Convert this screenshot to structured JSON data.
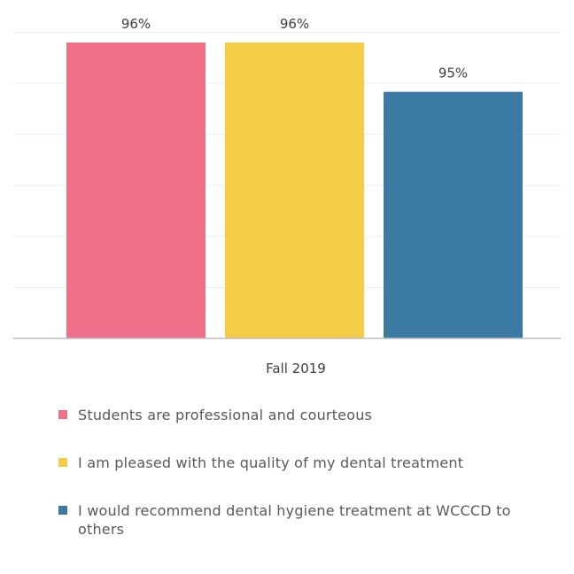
{
  "chart_data": {
    "type": "bar",
    "categories": [
      "Fall 2019"
    ],
    "series": [
      {
        "name": "Students are professional and courteous",
        "values": [
          96
        ],
        "label": "96%",
        "color": "#f07089"
      },
      {
        "name": "I am pleased with the quality of my dental treatment",
        "values": [
          96
        ],
        "label": "96%",
        "color": "#f5cc45"
      },
      {
        "name": "I would recommend dental hygiene treatment at WCCCD to others",
        "values": [
          95
        ],
        "label": "95%",
        "color": "#3a7aa3"
      }
    ],
    "ylim": [
      90,
      97
    ],
    "grid": true,
    "legend_position": "bottom"
  }
}
